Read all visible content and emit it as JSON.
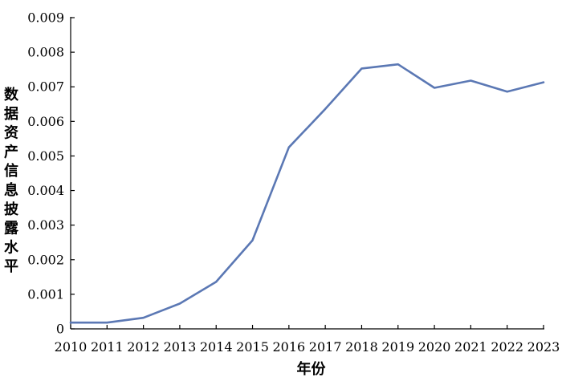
{
  "chart_data": {
    "type": "line",
    "title": "",
    "xlabel": "年份",
    "ylabel": "数据资产信息披露水平",
    "x": [
      "2010",
      "2011",
      "2012",
      "2013",
      "2014",
      "2015",
      "2016",
      "2017",
      "2018",
      "2019",
      "2020",
      "2021",
      "2022",
      "2023"
    ],
    "series": [
      {
        "values": [
          0.00018,
          0.00018,
          0.00032,
          0.00073,
          0.00136,
          0.00256,
          0.00525,
          0.00636,
          0.00753,
          0.00765,
          0.00697,
          0.00718,
          0.00686,
          0.00713
        ],
        "color": "#5b78b4"
      }
    ],
    "ylim": [
      0,
      0.009
    ],
    "yticks": [
      "0",
      "0.001",
      "0.002",
      "0.003",
      "0.004",
      "0.005",
      "0.006",
      "0.007",
      "0.008",
      "0.009"
    ],
    "grid": false,
    "legend": "none"
  }
}
